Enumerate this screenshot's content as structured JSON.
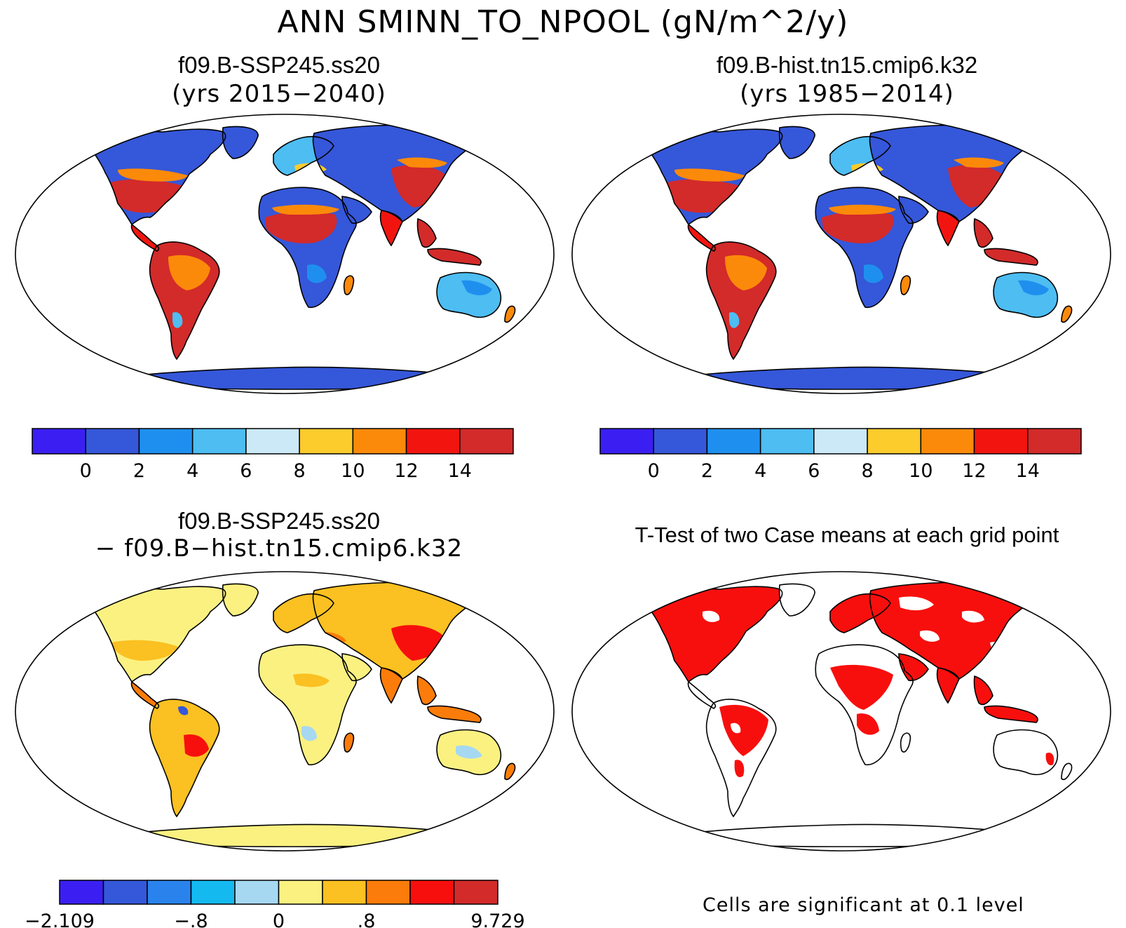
{
  "title": "ANN SMINN_TO_NPOOL (gN/m^2/y)",
  "panels": [
    {
      "case": "f09.B-SSP245.ss20",
      "years": "(yrs 2015−2040)",
      "scheme": "abs"
    },
    {
      "case": "f09.B-hist.tn15.cmip6.k32",
      "years": "(yrs 1985−2014)",
      "scheme": "abs"
    },
    {
      "case": "f09.B-SSP245.ss20",
      "years": "− f09.B−hist.tn15.cmip6.k32",
      "scheme": "diff"
    },
    {
      "case": "T-Test of two Case means at each grid point",
      "years": "",
      "scheme": "sig"
    }
  ],
  "colorbars": {
    "abs": {
      "colors": [
        "#3b1ff2",
        "#3557d9",
        "#1f8fef",
        "#4dbdf2",
        "#cce9f8",
        "#fccb2c",
        "#fc8a0a",
        "#f2150f",
        "#d32a2a"
      ],
      "labels": [
        "0",
        "2",
        "4",
        "6",
        "8",
        "10",
        "12",
        "14"
      ]
    },
    "diff": {
      "colors": [
        "#3b1ff2",
        "#3557d9",
        "#2a83ec",
        "#14b9f0",
        "#a6d8f2",
        "#fbf181",
        "#fbc021",
        "#fb7c0a",
        "#f70f0d",
        "#d32a2a"
      ],
      "labels": [
        "−2.109",
        "−.8",
        "0",
        ".8",
        "9.729"
      ]
    }
  },
  "significance_note": "Cells are significant at 0.1 level",
  "colors": {
    "ocean": "#ffffff",
    "land_outline": "#000000",
    "significant": "#f70f0d"
  }
}
